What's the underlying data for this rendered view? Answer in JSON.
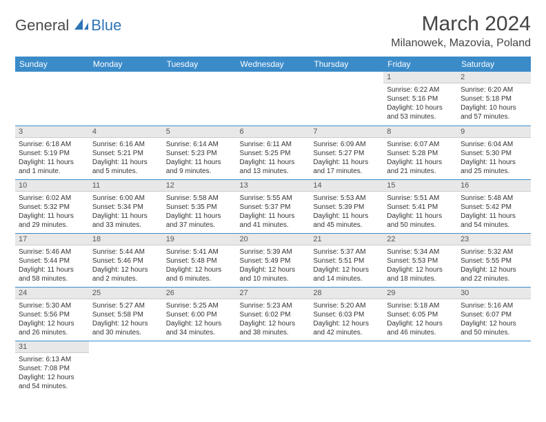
{
  "logo": {
    "general": "General",
    "blue": "Blue"
  },
  "title": "March 2024",
  "location": "Milanowek, Mazovia, Poland",
  "colors": {
    "header_bg": "#3b8bc9",
    "header_fg": "#ffffff",
    "daynum_bg": "#e8e8e8",
    "row_border": "#3b8bc9",
    "logo_blue": "#2e75b6",
    "text": "#333333"
  },
  "weekdays": [
    "Sunday",
    "Monday",
    "Tuesday",
    "Wednesday",
    "Thursday",
    "Friday",
    "Saturday"
  ],
  "weeks": [
    [
      null,
      null,
      null,
      null,
      null,
      {
        "n": "1",
        "sr": "6:22 AM",
        "ss": "5:16 PM",
        "dl": "10 hours and 53 minutes."
      },
      {
        "n": "2",
        "sr": "6:20 AM",
        "ss": "5:18 PM",
        "dl": "10 hours and 57 minutes."
      }
    ],
    [
      {
        "n": "3",
        "sr": "6:18 AM",
        "ss": "5:19 PM",
        "dl": "11 hours and 1 minute."
      },
      {
        "n": "4",
        "sr": "6:16 AM",
        "ss": "5:21 PM",
        "dl": "11 hours and 5 minutes."
      },
      {
        "n": "5",
        "sr": "6:14 AM",
        "ss": "5:23 PM",
        "dl": "11 hours and 9 minutes."
      },
      {
        "n": "6",
        "sr": "6:11 AM",
        "ss": "5:25 PM",
        "dl": "11 hours and 13 minutes."
      },
      {
        "n": "7",
        "sr": "6:09 AM",
        "ss": "5:27 PM",
        "dl": "11 hours and 17 minutes."
      },
      {
        "n": "8",
        "sr": "6:07 AM",
        "ss": "5:28 PM",
        "dl": "11 hours and 21 minutes."
      },
      {
        "n": "9",
        "sr": "6:04 AM",
        "ss": "5:30 PM",
        "dl": "11 hours and 25 minutes."
      }
    ],
    [
      {
        "n": "10",
        "sr": "6:02 AM",
        "ss": "5:32 PM",
        "dl": "11 hours and 29 minutes."
      },
      {
        "n": "11",
        "sr": "6:00 AM",
        "ss": "5:34 PM",
        "dl": "11 hours and 33 minutes."
      },
      {
        "n": "12",
        "sr": "5:58 AM",
        "ss": "5:35 PM",
        "dl": "11 hours and 37 minutes."
      },
      {
        "n": "13",
        "sr": "5:55 AM",
        "ss": "5:37 PM",
        "dl": "11 hours and 41 minutes."
      },
      {
        "n": "14",
        "sr": "5:53 AM",
        "ss": "5:39 PM",
        "dl": "11 hours and 45 minutes."
      },
      {
        "n": "15",
        "sr": "5:51 AM",
        "ss": "5:41 PM",
        "dl": "11 hours and 50 minutes."
      },
      {
        "n": "16",
        "sr": "5:48 AM",
        "ss": "5:42 PM",
        "dl": "11 hours and 54 minutes."
      }
    ],
    [
      {
        "n": "17",
        "sr": "5:46 AM",
        "ss": "5:44 PM",
        "dl": "11 hours and 58 minutes."
      },
      {
        "n": "18",
        "sr": "5:44 AM",
        "ss": "5:46 PM",
        "dl": "12 hours and 2 minutes."
      },
      {
        "n": "19",
        "sr": "5:41 AM",
        "ss": "5:48 PM",
        "dl": "12 hours and 6 minutes."
      },
      {
        "n": "20",
        "sr": "5:39 AM",
        "ss": "5:49 PM",
        "dl": "12 hours and 10 minutes."
      },
      {
        "n": "21",
        "sr": "5:37 AM",
        "ss": "5:51 PM",
        "dl": "12 hours and 14 minutes."
      },
      {
        "n": "22",
        "sr": "5:34 AM",
        "ss": "5:53 PM",
        "dl": "12 hours and 18 minutes."
      },
      {
        "n": "23",
        "sr": "5:32 AM",
        "ss": "5:55 PM",
        "dl": "12 hours and 22 minutes."
      }
    ],
    [
      {
        "n": "24",
        "sr": "5:30 AM",
        "ss": "5:56 PM",
        "dl": "12 hours and 26 minutes."
      },
      {
        "n": "25",
        "sr": "5:27 AM",
        "ss": "5:58 PM",
        "dl": "12 hours and 30 minutes."
      },
      {
        "n": "26",
        "sr": "5:25 AM",
        "ss": "6:00 PM",
        "dl": "12 hours and 34 minutes."
      },
      {
        "n": "27",
        "sr": "5:23 AM",
        "ss": "6:02 PM",
        "dl": "12 hours and 38 minutes."
      },
      {
        "n": "28",
        "sr": "5:20 AM",
        "ss": "6:03 PM",
        "dl": "12 hours and 42 minutes."
      },
      {
        "n": "29",
        "sr": "5:18 AM",
        "ss": "6:05 PM",
        "dl": "12 hours and 46 minutes."
      },
      {
        "n": "30",
        "sr": "5:16 AM",
        "ss": "6:07 PM",
        "dl": "12 hours and 50 minutes."
      }
    ],
    [
      {
        "n": "31",
        "sr": "6:13 AM",
        "ss": "7:08 PM",
        "dl": "12 hours and 54 minutes."
      },
      null,
      null,
      null,
      null,
      null,
      null
    ]
  ],
  "labels": {
    "sunrise": "Sunrise: ",
    "sunset": "Sunset: ",
    "daylight": "Daylight: "
  }
}
